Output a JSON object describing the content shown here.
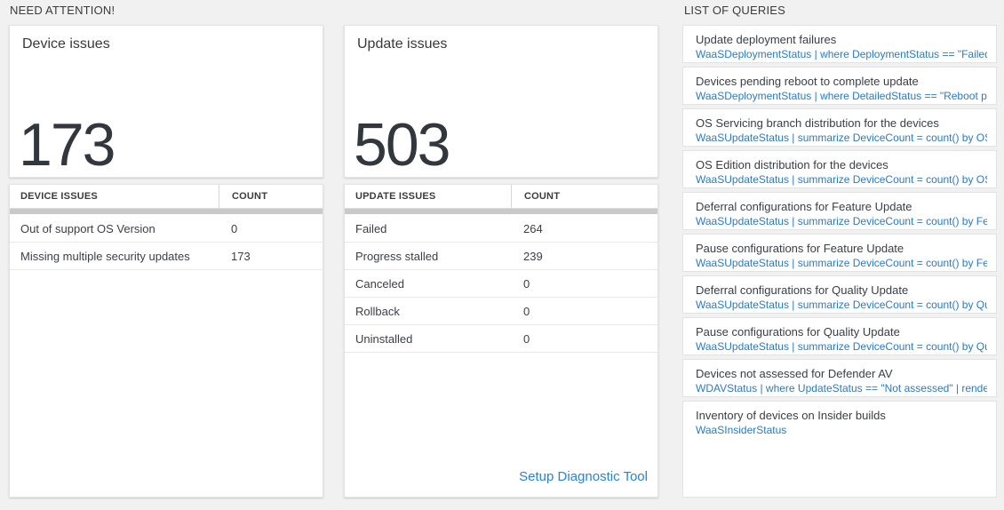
{
  "need_attention": {
    "section_title": "NEED ATTENTION!",
    "tiles": [
      {
        "title": "Device issues",
        "count": "173"
      },
      {
        "title": "Update issues",
        "count": "503"
      }
    ],
    "tables": [
      {
        "headers": {
          "label": "DEVICE ISSUES",
          "count": "COUNT"
        },
        "rows": [
          {
            "label": "Out of support OS Version",
            "count": "0"
          },
          {
            "label": "Missing multiple security updates",
            "count": "173"
          }
        ]
      },
      {
        "headers": {
          "label": "UPDATE ISSUES",
          "count": "COUNT"
        },
        "rows": [
          {
            "label": "Failed",
            "count": "264"
          },
          {
            "label": "Progress stalled",
            "count": "239"
          },
          {
            "label": "Canceled",
            "count": "0"
          },
          {
            "label": "Rollback",
            "count": "0"
          },
          {
            "label": "Uninstalled",
            "count": "0"
          }
        ],
        "footer_link": "Setup Diagnostic Tool"
      }
    ]
  },
  "queries": {
    "section_title": "LIST OF QUERIES",
    "items": [
      {
        "title": "Update deployment failures",
        "query": "WaaSDeploymentStatus | where DeploymentStatus == \"Failed\" |..."
      },
      {
        "title": "Devices pending reboot to complete update",
        "query": "WaaSDeploymentStatus | where DetailedStatus == \"Reboot pend..."
      },
      {
        "title": "OS Servicing branch distribution for the devices",
        "query": "WaaSUpdateStatus | summarize DeviceCount = count() by OSSer..."
      },
      {
        "title": "OS Edition distribution for the devices",
        "query": "WaaSUpdateStatus | summarize DeviceCount = count() by OSEdit..."
      },
      {
        "title": "Deferral configurations for Feature Update",
        "query": "WaaSUpdateStatus | summarize DeviceCount = count() by Featur..."
      },
      {
        "title": "Pause configurations for Feature Update",
        "query": "WaaSUpdateStatus | summarize DeviceCount = count() by Featur..."
      },
      {
        "title": "Deferral configurations for Quality Update",
        "query": "WaaSUpdateStatus | summarize DeviceCount = count() by Qualit..."
      },
      {
        "title": "Pause configurations for Quality Update",
        "query": "WaaSUpdateStatus | summarize DeviceCount = count() by Qualit..."
      },
      {
        "title": "Devices not assessed for Defender AV",
        "query": "WDAVStatus | where UpdateStatus == \"Not assessed\" | render ta..."
      },
      {
        "title": "Inventory of devices on Insider builds",
        "query": "WaaSInsiderStatus"
      }
    ]
  },
  "colors": {
    "accent_blue": "#2b7bc0",
    "link_blue": "#2b83cc",
    "page_bg": "#f1f1f1",
    "big_number": "#31373d"
  }
}
